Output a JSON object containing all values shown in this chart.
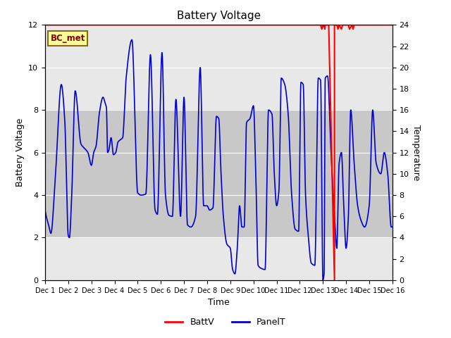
{
  "title": "Battery Voltage",
  "xlabel": "Time",
  "ylabel_left": "Battery Voltage",
  "ylabel_right": "Temperature",
  "ylim_left": [
    0,
    12
  ],
  "ylim_right": [
    0,
    24
  ],
  "xlim": [
    0,
    15
  ],
  "xtick_labels": [
    "Dec 1",
    "Dec 2",
    "Dec 3",
    "Dec 4",
    "Dec 5",
    "Dec 6",
    "Dec 7",
    "Dec 8",
    "Dec 9",
    "Dec 10",
    "Dec 11",
    "Dec 12",
    "Dec 13",
    "Dec 14",
    "Dec 15",
    "Dec 16"
  ],
  "xtick_positions": [
    0,
    1,
    2,
    3,
    4,
    5,
    6,
    7,
    8,
    9,
    10,
    11,
    12,
    13,
    14,
    15
  ],
  "legend_label": "BC_met",
  "legend_label_color": "#8B0000",
  "legend_label_bg": "#FFFF99",
  "legend_label_border": "#8B6914",
  "batt_color": "#FF0000",
  "panel_color": "#0000CD",
  "shade_ymin": 2,
  "shade_ymax": 8,
  "shade_color": "#C8C8C8",
  "plot_bg": "#E8E8E8",
  "title_fontsize": 11,
  "axis_fontsize": 9,
  "tick_fontsize": 8,
  "panel_t_x": [
    0,
    0.05,
    0.15,
    0.25,
    0.45,
    0.7,
    0.85,
    1.0,
    1.05,
    1.15,
    1.3,
    1.55,
    1.7,
    1.85,
    2.0,
    2.1,
    2.2,
    2.35,
    2.5,
    2.6,
    2.65,
    2.7,
    2.75,
    2.85,
    2.95,
    3.05,
    3.15,
    3.25,
    3.35,
    3.5,
    3.75,
    4.0,
    4.15,
    4.35,
    4.55,
    4.75,
    4.85,
    5.05,
    5.2,
    5.35,
    5.5,
    5.65,
    5.85,
    6.0,
    6.15,
    6.3,
    6.5,
    6.7,
    6.85,
    7.0,
    7.1,
    7.25,
    7.4,
    7.5,
    7.6,
    7.7,
    7.85,
    8.0,
    8.1,
    8.2,
    8.3,
    8.4,
    8.5,
    8.6,
    8.7,
    8.85,
    9.0,
    9.1,
    9.2,
    9.35,
    9.5,
    9.65,
    9.8,
    9.9,
    10.0,
    10.1,
    10.2,
    10.35,
    10.5,
    10.65,
    10.8,
    10.95,
    11.05,
    11.15,
    11.25,
    11.35,
    11.5,
    11.65,
    11.8,
    11.9,
    12.0,
    12.05,
    12.1,
    12.2,
    12.35,
    12.5,
    12.6,
    12.7,
    12.8,
    12.9,
    13.0,
    13.1,
    13.2,
    13.35,
    13.5,
    13.65,
    13.8,
    14.0,
    14.15,
    14.3,
    14.5,
    14.65,
    14.8,
    14.95,
    15.0
  ],
  "panel_t_y": [
    3.3,
    3.0,
    2.6,
    2.2,
    5.0,
    9.2,
    7.5,
    2.1,
    2.0,
    4.0,
    8.9,
    6.4,
    6.2,
    6.0,
    5.4,
    6.0,
    6.3,
    7.9,
    8.6,
    8.3,
    8.1,
    6.0,
    6.1,
    6.7,
    5.9,
    6.0,
    6.5,
    6.6,
    6.7,
    9.5,
    11.3,
    4.1,
    4.0,
    4.05,
    10.6,
    3.3,
    3.1,
    10.7,
    4.0,
    3.05,
    3.0,
    8.5,
    3.0,
    8.6,
    2.6,
    2.5,
    3.0,
    10.0,
    3.5,
    3.5,
    3.3,
    3.4,
    7.7,
    7.6,
    5.0,
    3.0,
    1.7,
    1.5,
    0.5,
    0.3,
    1.5,
    3.5,
    2.5,
    2.5,
    7.4,
    7.6,
    8.2,
    5.0,
    0.7,
    0.55,
    0.5,
    8.0,
    7.8,
    5.0,
    3.5,
    4.2,
    9.5,
    9.2,
    7.8,
    4.0,
    2.4,
    2.3,
    9.3,
    9.2,
    4.0,
    2.3,
    0.8,
    0.7,
    9.5,
    9.4,
    0.0,
    0.3,
    9.5,
    9.6,
    6.0,
    3.0,
    1.5,
    5.5,
    6.0,
    3.5,
    1.5,
    3.0,
    8.0,
    5.5,
    3.5,
    2.8,
    2.5,
    3.5,
    8.0,
    5.5,
    5.0,
    6.0,
    5.0,
    2.5,
    2.5
  ],
  "batt_v_x": [
    0,
    11.9,
    11.95,
    12.0,
    12.05,
    12.07,
    12.08,
    12.1,
    12.15,
    12.2,
    12.25,
    12.5,
    12.5,
    12.55,
    12.6,
    12.65,
    12.7,
    12.75,
    12.8,
    12.85,
    12.9,
    13.0,
    13.1,
    13.15,
    13.2,
    13.25,
    13.3,
    13.35,
    13.4,
    13.5,
    15
  ],
  "batt_v_y": [
    12,
    12,
    11.8,
    12,
    11.9,
    12,
    11.8,
    12,
    12,
    12,
    12,
    0,
    12,
    12,
    12,
    11.8,
    12,
    11.9,
    11.8,
    12,
    12,
    12,
    12,
    11.8,
    11.9,
    12,
    11.8,
    12,
    12,
    12,
    12
  ]
}
